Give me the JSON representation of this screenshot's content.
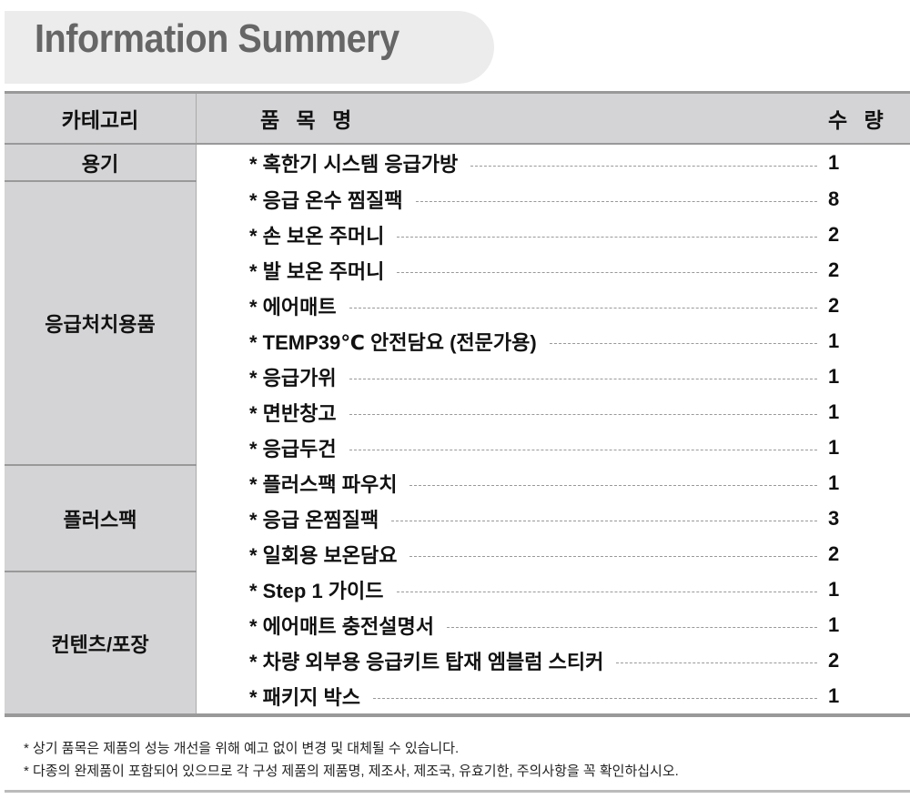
{
  "title": "Information Summery",
  "headers": {
    "category": "카테고리",
    "item": "품 목 명",
    "qty": "수 량"
  },
  "groups": [
    {
      "category": "용기",
      "items": [
        {
          "name": "* 혹한기 시스템 응급가방",
          "qty": "1"
        }
      ]
    },
    {
      "category": "응급처치용품",
      "items": [
        {
          "name": "* 응급 온수 찜질팩",
          "qty": "8"
        },
        {
          "name": "* 손 보온 주머니",
          "qty": "2"
        },
        {
          "name": "* 발 보온 주머니",
          "qty": "2"
        },
        {
          "name": "* 에어매트",
          "qty": "2"
        },
        {
          "name": "* TEMP39℃ 안전담요 (전문가용)",
          "qty": "1"
        },
        {
          "name": "* 응급가위",
          "qty": "1"
        },
        {
          "name": "* 면반창고",
          "qty": "1"
        },
        {
          "name": "* 응급두건",
          "qty": "1"
        }
      ]
    },
    {
      "category": "플러스팩",
      "items": [
        {
          "name": "* 플러스팩 파우치",
          "qty": "1"
        },
        {
          "name": "* 응급 온찜질팩",
          "qty": "3"
        },
        {
          "name": "* 일회용 보온담요",
          "qty": "2"
        }
      ]
    },
    {
      "category": "컨텐츠/포장",
      "items": [
        {
          "name": "* Step 1 가이드",
          "qty": "1"
        },
        {
          "name": "* 에어매트 충전설명서",
          "qty": "1"
        },
        {
          "name": "* 차량 외부용 응급키트 탑재 엠블럼 스티커",
          "qty": "2"
        },
        {
          "name": "* 패키지 박스",
          "qty": "1"
        }
      ]
    }
  ],
  "notes": [
    "* 상기 품목은 제품의 성능 개선을 위해 예고 없이 변경 및 대체될 수 있습니다.",
    "* 다종의 완제품이 포함되어 있으므로 각 구성 제품의 제품명, 제조사, 제조국, 유효기한, 주의사항을 꼭 확인하십시오."
  ]
}
